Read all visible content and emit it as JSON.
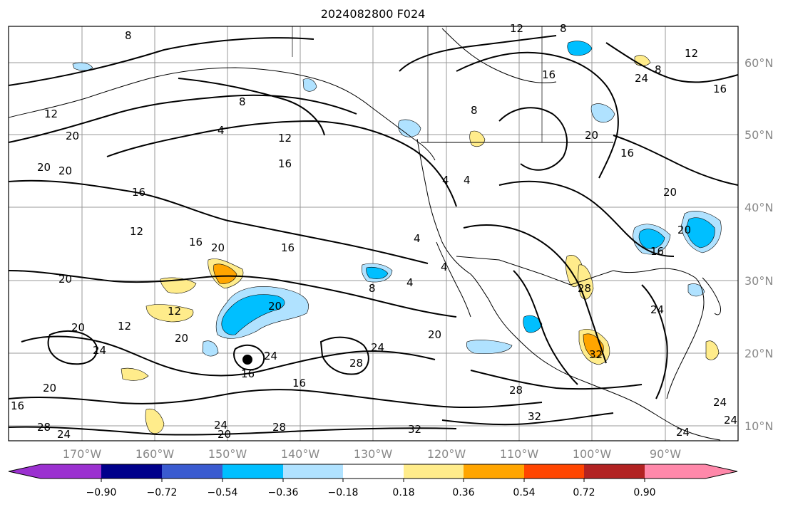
{
  "title": "2024082800 F024",
  "longitude_ticks": [
    "170°W",
    "160°W",
    "150°W",
    "140°W",
    "130°W",
    "120°W",
    "110°W",
    "100°W",
    "90°W"
  ],
  "latitude_ticks": [
    "60°N",
    "50°N",
    "40°N",
    "30°N",
    "20°N",
    "10°N"
  ],
  "colorbar": {
    "tick_labels": [
      "−0.90",
      "−0.72",
      "−0.54",
      "−0.36",
      "−0.18",
      "0.18",
      "0.36",
      "0.54",
      "0.72",
      "0.90"
    ],
    "colors": [
      "#9b30d0",
      "#00008b",
      "#3a5bd0",
      "#00bfff",
      "#b0e2ff",
      "#ffffff",
      "#ffec8b",
      "#ffa500",
      "#ff4500",
      "#b22222",
      "#ff88aa"
    ]
  },
  "colors": {
    "land_border": "#000000",
    "gridline": "#999999",
    "contour": "#000000",
    "positive_fill": "#ffec8b",
    "positive_fill_strong": "#ffa500",
    "negative_fill": "#b0e2ff",
    "negative_fill_strong": "#00bfff"
  },
  "contour_labels": [
    "8",
    "12",
    "8",
    "16",
    "12",
    "12",
    "8",
    "20",
    "8",
    "4",
    "12",
    "16",
    "20",
    "16",
    "4",
    "4",
    "16",
    "12",
    "16",
    "20",
    "16",
    "4",
    "20",
    "20",
    "4",
    "12",
    "8",
    "20",
    "16",
    "20",
    "12",
    "20",
    "24",
    "24",
    "16",
    "28",
    "24",
    "20",
    "28",
    "32",
    "28",
    "24",
    "32",
    "28",
    "20",
    "16",
    "24",
    "20",
    "24",
    "20",
    "16",
    "8",
    "4",
    "24",
    "28",
    "20",
    "32",
    "20",
    "24",
    "24",
    "16",
    "24"
  ]
}
